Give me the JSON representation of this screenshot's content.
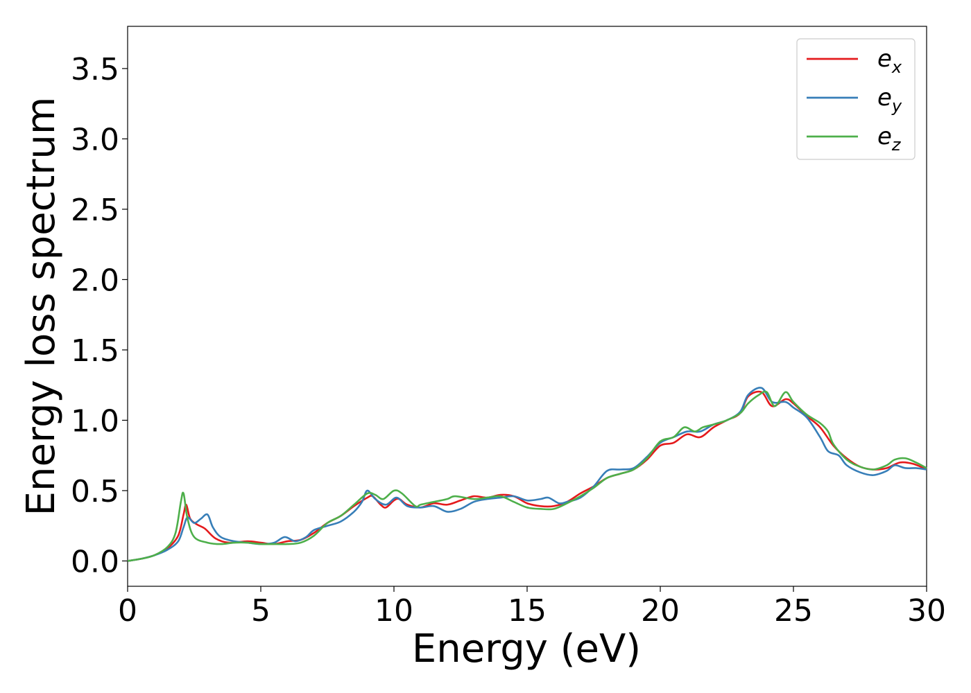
{
  "chart_data": {
    "type": "line",
    "title": "",
    "xlabel": "Energy (eV)",
    "ylabel": "Energy loss spectrum",
    "xlim": [
      0,
      30
    ],
    "ylim": [
      -0.18,
      3.8
    ],
    "xticks": [
      "0",
      "5",
      "10",
      "15",
      "20",
      "25",
      "30"
    ],
    "xtick_values": [
      0,
      5,
      10,
      15,
      20,
      25,
      30
    ],
    "yticks": [
      "0.0",
      "0.5",
      "1.0",
      "1.5",
      "2.0",
      "2.5",
      "3.0",
      "3.5"
    ],
    "ytick_values": [
      0,
      0.5,
      1.0,
      1.5,
      2.0,
      2.5,
      3.0,
      3.5
    ],
    "grid": false,
    "legend_position": "top-right",
    "series": [
      {
        "name": "e_x",
        "label_base": "e",
        "label_sub": "x",
        "color": "#e41a1c",
        "points": [
          [
            0,
            0
          ],
          [
            0.5,
            0.015
          ],
          [
            1.0,
            0.04
          ],
          [
            1.5,
            0.09
          ],
          [
            1.9,
            0.18
          ],
          [
            2.1,
            0.33
          ],
          [
            2.2,
            0.4
          ],
          [
            2.35,
            0.3
          ],
          [
            2.6,
            0.26
          ],
          [
            2.9,
            0.23
          ],
          [
            3.3,
            0.16
          ],
          [
            3.8,
            0.13
          ],
          [
            4.5,
            0.14
          ],
          [
            5.0,
            0.13
          ],
          [
            5.5,
            0.12
          ],
          [
            6.0,
            0.14
          ],
          [
            6.5,
            0.15
          ],
          [
            7.0,
            0.2
          ],
          [
            7.5,
            0.27
          ],
          [
            8.0,
            0.32
          ],
          [
            8.5,
            0.39
          ],
          [
            9.0,
            0.45
          ],
          [
            9.2,
            0.46
          ],
          [
            9.5,
            0.4
          ],
          [
            9.7,
            0.38
          ],
          [
            10.0,
            0.43
          ],
          [
            10.2,
            0.44
          ],
          [
            10.5,
            0.4
          ],
          [
            11.0,
            0.38
          ],
          [
            11.5,
            0.41
          ],
          [
            12.0,
            0.4
          ],
          [
            12.5,
            0.43
          ],
          [
            13.0,
            0.46
          ],
          [
            13.5,
            0.45
          ],
          [
            14.0,
            0.47
          ],
          [
            14.5,
            0.46
          ],
          [
            15.0,
            0.41
          ],
          [
            15.5,
            0.39
          ],
          [
            16.0,
            0.39
          ],
          [
            16.5,
            0.42
          ],
          [
            17.0,
            0.48
          ],
          [
            17.5,
            0.53
          ],
          [
            18.0,
            0.59
          ],
          [
            18.5,
            0.62
          ],
          [
            19.0,
            0.65
          ],
          [
            19.5,
            0.72
          ],
          [
            20.0,
            0.82
          ],
          [
            20.5,
            0.84
          ],
          [
            21.0,
            0.9
          ],
          [
            21.5,
            0.88
          ],
          [
            22.0,
            0.95
          ],
          [
            22.5,
            1.0
          ],
          [
            23.0,
            1.05
          ],
          [
            23.3,
            1.17
          ],
          [
            23.8,
            1.2
          ],
          [
            24.2,
            1.1
          ],
          [
            24.7,
            1.15
          ],
          [
            25.0,
            1.12
          ],
          [
            25.5,
            1.03
          ],
          [
            26.0,
            0.95
          ],
          [
            26.5,
            0.82
          ],
          [
            27.0,
            0.73
          ],
          [
            27.5,
            0.67
          ],
          [
            28.0,
            0.65
          ],
          [
            28.5,
            0.66
          ],
          [
            29.0,
            0.7
          ],
          [
            29.5,
            0.69
          ],
          [
            30.0,
            0.65
          ]
        ]
      },
      {
        "name": "e_y",
        "label_base": "e",
        "label_sub": "y",
        "color": "#377eb8",
        "points": [
          [
            0,
            0
          ],
          [
            0.5,
            0.015
          ],
          [
            1.0,
            0.04
          ],
          [
            1.5,
            0.08
          ],
          [
            1.9,
            0.14
          ],
          [
            2.1,
            0.24
          ],
          [
            2.25,
            0.31
          ],
          [
            2.5,
            0.27
          ],
          [
            2.75,
            0.3
          ],
          [
            3.0,
            0.33
          ],
          [
            3.2,
            0.24
          ],
          [
            3.5,
            0.17
          ],
          [
            4.0,
            0.14
          ],
          [
            4.5,
            0.13
          ],
          [
            5.0,
            0.12
          ],
          [
            5.5,
            0.13
          ],
          [
            5.9,
            0.17
          ],
          [
            6.3,
            0.14
          ],
          [
            6.7,
            0.17
          ],
          [
            7.0,
            0.22
          ],
          [
            7.5,
            0.25
          ],
          [
            8.0,
            0.28
          ],
          [
            8.5,
            0.35
          ],
          [
            8.8,
            0.42
          ],
          [
            9.0,
            0.5
          ],
          [
            9.3,
            0.44
          ],
          [
            9.7,
            0.4
          ],
          [
            10.1,
            0.45
          ],
          [
            10.5,
            0.39
          ],
          [
            11.0,
            0.38
          ],
          [
            11.5,
            0.39
          ],
          [
            12.0,
            0.35
          ],
          [
            12.5,
            0.37
          ],
          [
            13.0,
            0.42
          ],
          [
            13.5,
            0.44
          ],
          [
            14.0,
            0.45
          ],
          [
            14.5,
            0.46
          ],
          [
            15.0,
            0.43
          ],
          [
            15.5,
            0.44
          ],
          [
            15.8,
            0.45
          ],
          [
            16.2,
            0.41
          ],
          [
            16.5,
            0.42
          ],
          [
            17.0,
            0.45
          ],
          [
            17.5,
            0.53
          ],
          [
            18.0,
            0.64
          ],
          [
            18.5,
            0.65
          ],
          [
            19.0,
            0.66
          ],
          [
            19.5,
            0.74
          ],
          [
            20.0,
            0.84
          ],
          [
            20.5,
            0.88
          ],
          [
            21.0,
            0.92
          ],
          [
            21.5,
            0.92
          ],
          [
            22.0,
            0.97
          ],
          [
            22.5,
            1.0
          ],
          [
            23.0,
            1.06
          ],
          [
            23.3,
            1.18
          ],
          [
            23.8,
            1.23
          ],
          [
            24.2,
            1.13
          ],
          [
            24.7,
            1.13
          ],
          [
            25.0,
            1.09
          ],
          [
            25.5,
            1.02
          ],
          [
            26.0,
            0.88
          ],
          [
            26.3,
            0.78
          ],
          [
            26.7,
            0.75
          ],
          [
            27.0,
            0.68
          ],
          [
            27.5,
            0.63
          ],
          [
            28.0,
            0.61
          ],
          [
            28.5,
            0.64
          ],
          [
            28.8,
            0.68
          ],
          [
            29.2,
            0.66
          ],
          [
            29.6,
            0.66
          ],
          [
            30.0,
            0.65
          ]
        ]
      },
      {
        "name": "e_z",
        "label_base": "e",
        "label_sub": "z",
        "color": "#4daf4a",
        "points": [
          [
            0,
            0
          ],
          [
            0.5,
            0.015
          ],
          [
            1.0,
            0.04
          ],
          [
            1.5,
            0.1
          ],
          [
            1.8,
            0.2
          ],
          [
            2.0,
            0.42
          ],
          [
            2.1,
            0.48
          ],
          [
            2.25,
            0.3
          ],
          [
            2.5,
            0.17
          ],
          [
            3.0,
            0.13
          ],
          [
            3.5,
            0.12
          ],
          [
            4.0,
            0.13
          ],
          [
            4.5,
            0.13
          ],
          [
            5.0,
            0.12
          ],
          [
            5.5,
            0.12
          ],
          [
            6.0,
            0.12
          ],
          [
            6.5,
            0.13
          ],
          [
            7.0,
            0.18
          ],
          [
            7.5,
            0.27
          ],
          [
            8.0,
            0.32
          ],
          [
            8.5,
            0.4
          ],
          [
            9.0,
            0.48
          ],
          [
            9.3,
            0.47
          ],
          [
            9.6,
            0.44
          ],
          [
            10.0,
            0.5
          ],
          [
            10.3,
            0.48
          ],
          [
            10.8,
            0.39
          ],
          [
            11.0,
            0.4
          ],
          [
            11.5,
            0.42
          ],
          [
            12.0,
            0.44
          ],
          [
            12.3,
            0.46
          ],
          [
            13.0,
            0.44
          ],
          [
            13.5,
            0.45
          ],
          [
            14.0,
            0.46
          ],
          [
            14.5,
            0.42
          ],
          [
            15.0,
            0.38
          ],
          [
            15.5,
            0.37
          ],
          [
            16.0,
            0.37
          ],
          [
            16.5,
            0.41
          ],
          [
            17.0,
            0.46
          ],
          [
            17.5,
            0.52
          ],
          [
            18.0,
            0.59
          ],
          [
            18.5,
            0.62
          ],
          [
            19.0,
            0.65
          ],
          [
            19.5,
            0.73
          ],
          [
            20.0,
            0.85
          ],
          [
            20.5,
            0.88
          ],
          [
            20.9,
            0.95
          ],
          [
            21.3,
            0.92
          ],
          [
            21.6,
            0.95
          ],
          [
            22.0,
            0.97
          ],
          [
            22.5,
            1.0
          ],
          [
            23.0,
            1.05
          ],
          [
            23.3,
            1.12
          ],
          [
            23.7,
            1.18
          ],
          [
            24.0,
            1.2
          ],
          [
            24.3,
            1.1
          ],
          [
            24.7,
            1.2
          ],
          [
            25.0,
            1.13
          ],
          [
            25.5,
            1.04
          ],
          [
            26.0,
            0.98
          ],
          [
            26.3,
            0.92
          ],
          [
            26.5,
            0.83
          ],
          [
            27.0,
            0.72
          ],
          [
            27.5,
            0.67
          ],
          [
            28.0,
            0.65
          ],
          [
            28.5,
            0.68
          ],
          [
            28.8,
            0.72
          ],
          [
            29.2,
            0.73
          ],
          [
            29.6,
            0.7
          ],
          [
            30.0,
            0.66
          ]
        ]
      }
    ]
  }
}
